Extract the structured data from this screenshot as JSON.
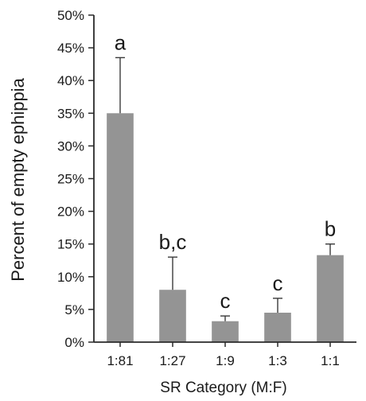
{
  "chart_data": {
    "type": "bar",
    "title": "",
    "xlabel": "SR Category (M:F)",
    "ylabel": "Percent of empty ephippia",
    "categories": [
      "1:81",
      "1:27",
      "1:9",
      "1:3",
      "1:1"
    ],
    "values": [
      35.0,
      8.0,
      3.2,
      4.5,
      13.3
    ],
    "error_upper": [
      43.5,
      13.0,
      4.0,
      6.7,
      15.0
    ],
    "significance_labels": [
      "a",
      "b,c",
      "c",
      "c",
      "b"
    ],
    "ylim": [
      0,
      50
    ],
    "yticks": [
      0,
      5,
      10,
      15,
      20,
      25,
      30,
      35,
      40,
      45,
      50
    ],
    "ytick_labels": [
      "0%",
      "5%",
      "10%",
      "15%",
      "20%",
      "25%",
      "30%",
      "35%",
      "40%",
      "45%",
      "50%"
    ],
    "grid": false,
    "legend": "none",
    "colors": {
      "bar": "#949494",
      "axis": "#2a2a2a",
      "error_bar": "#3a3a3a"
    }
  }
}
